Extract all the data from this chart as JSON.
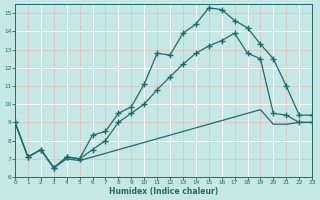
{
  "xlabel": "Humidex (Indice chaleur)",
  "bg_color": "#c5e8e5",
  "line_color": "#1e6b6b",
  "grid_major_color": "#ffffff",
  "grid_minor_color": "#e8b8b8",
  "ylim": [
    6,
    15.5
  ],
  "xlim": [
    0,
    23
  ],
  "yticks": [
    6,
    7,
    8,
    9,
    10,
    11,
    12,
    13,
    14,
    15
  ],
  "xticks": [
    0,
    1,
    2,
    3,
    4,
    5,
    6,
    7,
    8,
    9,
    10,
    11,
    12,
    13,
    14,
    15,
    16,
    17,
    18,
    19,
    20,
    21,
    22,
    23
  ],
  "line1_x": [
    0,
    1,
    2,
    3,
    4,
    5,
    6,
    7,
    8,
    9,
    10,
    11,
    12,
    13,
    14,
    15,
    16,
    17,
    18,
    19,
    20,
    21,
    22,
    23
  ],
  "line1_y": [
    9.0,
    7.1,
    7.5,
    6.5,
    7.1,
    7.0,
    8.3,
    8.5,
    9.5,
    9.85,
    11.1,
    12.8,
    12.7,
    13.9,
    14.4,
    15.3,
    15.2,
    14.6,
    14.2,
    13.3,
    12.5,
    11.0,
    9.4,
    9.4
  ],
  "line2_x": [
    0,
    1,
    2,
    3,
    4,
    5,
    6,
    7,
    8,
    9,
    10,
    11,
    12,
    13,
    14,
    15,
    16,
    17,
    18,
    19,
    20,
    21,
    22,
    23
  ],
  "line2_y": [
    9.0,
    7.1,
    7.5,
    6.5,
    7.1,
    7.0,
    7.5,
    8.0,
    9.0,
    9.5,
    10.0,
    10.8,
    11.5,
    12.2,
    12.8,
    13.2,
    13.5,
    13.9,
    12.8,
    12.5,
    9.5,
    9.4,
    9.0,
    9.0
  ],
  "line3_x": [
    0,
    1,
    2,
    3,
    4,
    5,
    6,
    7,
    8,
    9,
    10,
    11,
    12,
    13,
    14,
    15,
    16,
    17,
    18,
    19,
    20,
    21,
    22,
    23
  ],
  "line3_y": [
    9.0,
    7.1,
    7.5,
    6.5,
    7.0,
    6.9,
    7.1,
    7.3,
    7.5,
    7.7,
    7.9,
    8.1,
    8.3,
    8.5,
    8.7,
    8.9,
    9.1,
    9.3,
    9.5,
    9.7,
    8.9,
    8.9,
    9.0,
    9.0
  ]
}
